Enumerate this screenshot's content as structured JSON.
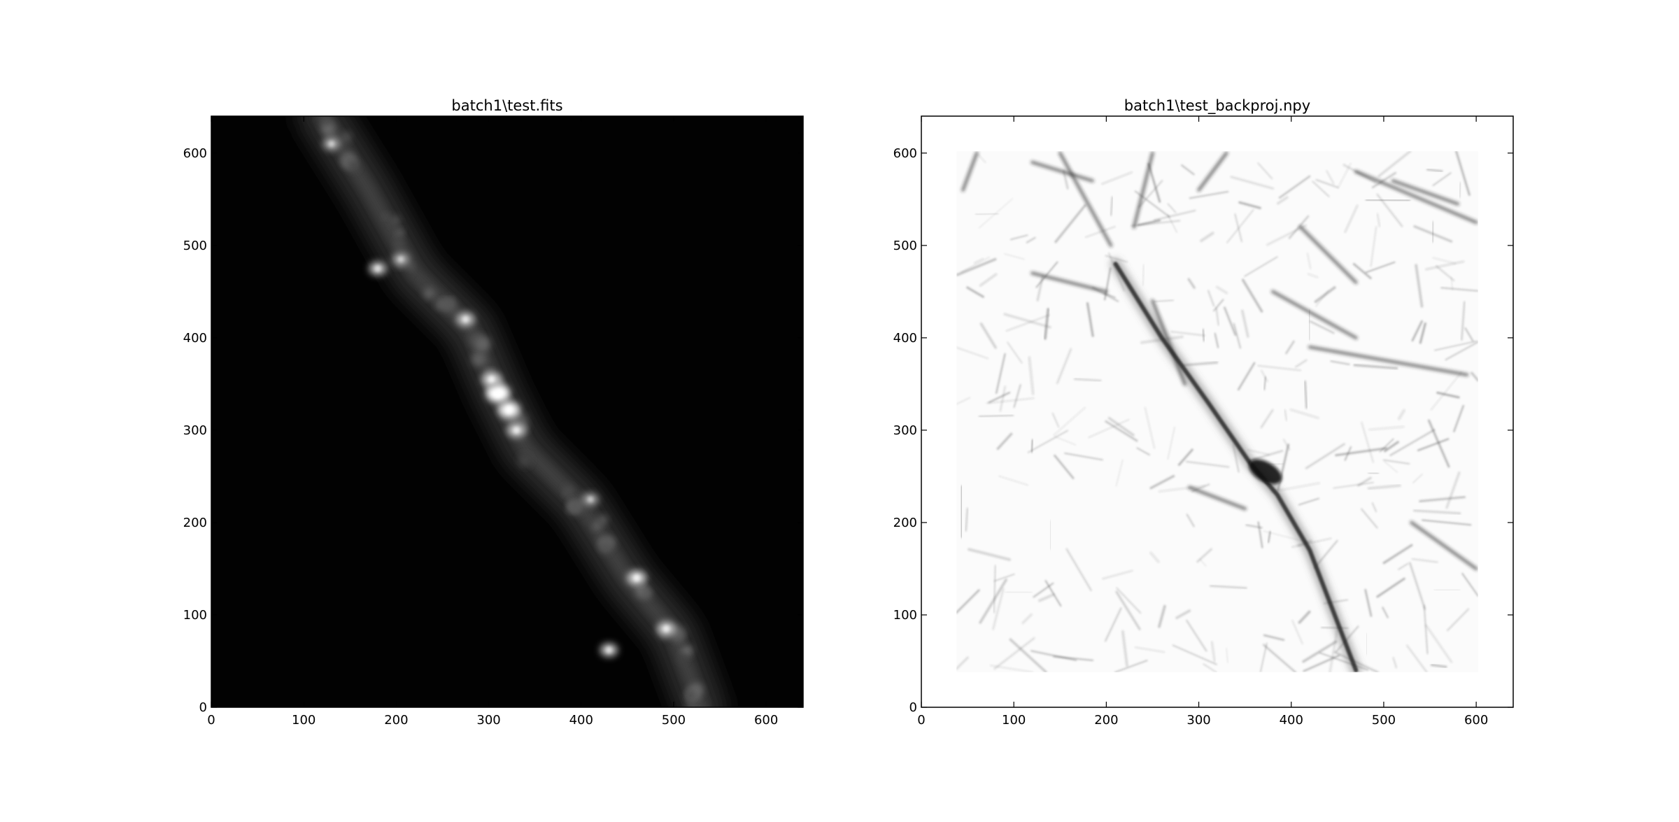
{
  "chart_data": [
    {
      "type": "heatmap",
      "title": "batch1\\test.fits",
      "colormap": "gray",
      "xlim": [
        0,
        640
      ],
      "ylim": [
        0,
        640
      ],
      "xticks": [
        0,
        100,
        200,
        300,
        400,
        500,
        600
      ],
      "yticks": [
        0,
        100,
        200,
        300,
        400,
        500,
        600
      ],
      "xlabel": "",
      "ylabel": "",
      "features": {
        "filament_ridge": [
          [
            120,
            640
          ],
          [
            170,
            560
          ],
          [
            220,
            470
          ],
          [
            280,
            410
          ],
          [
            310,
            340
          ],
          [
            340,
            280
          ],
          [
            400,
            220
          ],
          [
            450,
            140
          ],
          [
            500,
            80
          ],
          [
            530,
            0
          ]
        ],
        "bright_spots": [
          {
            "x": 310,
            "y": 340,
            "intensity": 1.0
          },
          {
            "x": 322,
            "y": 322,
            "intensity": 0.85
          },
          {
            "x": 303,
            "y": 355,
            "intensity": 0.6
          },
          {
            "x": 330,
            "y": 300,
            "intensity": 0.55
          },
          {
            "x": 275,
            "y": 420,
            "intensity": 0.5
          },
          {
            "x": 460,
            "y": 140,
            "intensity": 0.6
          },
          {
            "x": 492,
            "y": 85,
            "intensity": 0.55
          },
          {
            "x": 430,
            "y": 62,
            "intensity": 0.45
          },
          {
            "x": 180,
            "y": 475,
            "intensity": 0.45
          },
          {
            "x": 205,
            "y": 485,
            "intensity": 0.35
          },
          {
            "x": 130,
            "y": 610,
            "intensity": 0.35
          },
          {
            "x": 410,
            "y": 225,
            "intensity": 0.3
          }
        ]
      }
    },
    {
      "type": "heatmap",
      "title": "batch1\\test_backproj.npy",
      "colormap": "gray_r",
      "xlim": [
        0,
        640
      ],
      "ylim": [
        0,
        640
      ],
      "xticks": [
        0,
        100,
        200,
        300,
        400,
        500,
        600
      ],
      "yticks": [
        0,
        100,
        200,
        300,
        400,
        500,
        600
      ],
      "xlabel": "",
      "ylabel": "",
      "data_region": {
        "x": [
          38,
          602
        ],
        "y": [
          38,
          602
        ]
      },
      "features": {
        "main_filament": [
          [
            210,
            480
          ],
          [
            260,
            400
          ],
          [
            310,
            330
          ],
          [
            355,
            265
          ],
          [
            385,
            230
          ],
          [
            420,
            170
          ],
          [
            470,
            40
          ]
        ],
        "dense_knot": {
          "x": 372,
          "y": 255
        },
        "secondary_strokes": [
          [
            [
              150,
              600
            ],
            [
              205,
              500
            ]
          ],
          [
            [
              185,
              570
            ],
            [
              120,
              590
            ]
          ],
          [
            [
              250,
              440
            ],
            [
              285,
              350
            ]
          ],
          [
            [
              380,
              450
            ],
            [
              470,
              400
            ]
          ],
          [
            [
              420,
              390
            ],
            [
              590,
              360
            ]
          ],
          [
            [
              470,
              580
            ],
            [
              600,
              525
            ]
          ],
          [
            [
              510,
              570
            ],
            [
              580,
              545
            ]
          ],
          [
            [
              290,
              238
            ],
            [
              350,
              215
            ]
          ],
          [
            [
              60,
              600
            ],
            [
              45,
              560
            ]
          ],
          [
            [
              120,
              470
            ],
            [
              200,
              450
            ]
          ],
          [
            [
              530,
              200
            ],
            [
              600,
              150
            ]
          ],
          [
            [
              250,
              600
            ],
            [
              230,
              520
            ]
          ],
          [
            [
              330,
              600
            ],
            [
              300,
              560
            ]
          ],
          [
            [
              410,
              520
            ],
            [
              470,
              460
            ]
          ]
        ]
      }
    }
  ]
}
